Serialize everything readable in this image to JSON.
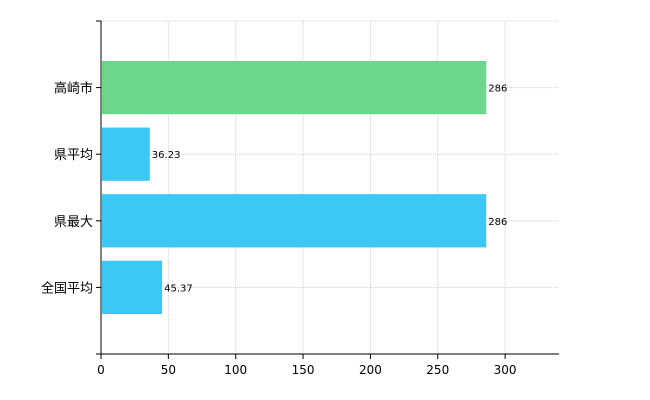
{
  "chart_data": {
    "type": "bar",
    "orientation": "horizontal",
    "categories": [
      "高崎市",
      "県平均",
      "県最大",
      "全国平均"
    ],
    "values": [
      286,
      36.23,
      286,
      45.37
    ],
    "value_labels": [
      "286",
      "36.23",
      "286",
      "45.37"
    ],
    "colors": [
      "#6cd68c",
      "#3cc7f5",
      "#3cc7f5",
      "#3cc7f5"
    ],
    "xlim": [
      0,
      340
    ],
    "xticks": [
      0,
      50,
      100,
      150,
      200,
      250,
      300
    ],
    "xtick_labels": [
      "0",
      "50",
      "100",
      "150",
      "200",
      "250",
      "300"
    ],
    "grid": true,
    "title": "",
    "xlabel": "",
    "ylabel": ""
  }
}
